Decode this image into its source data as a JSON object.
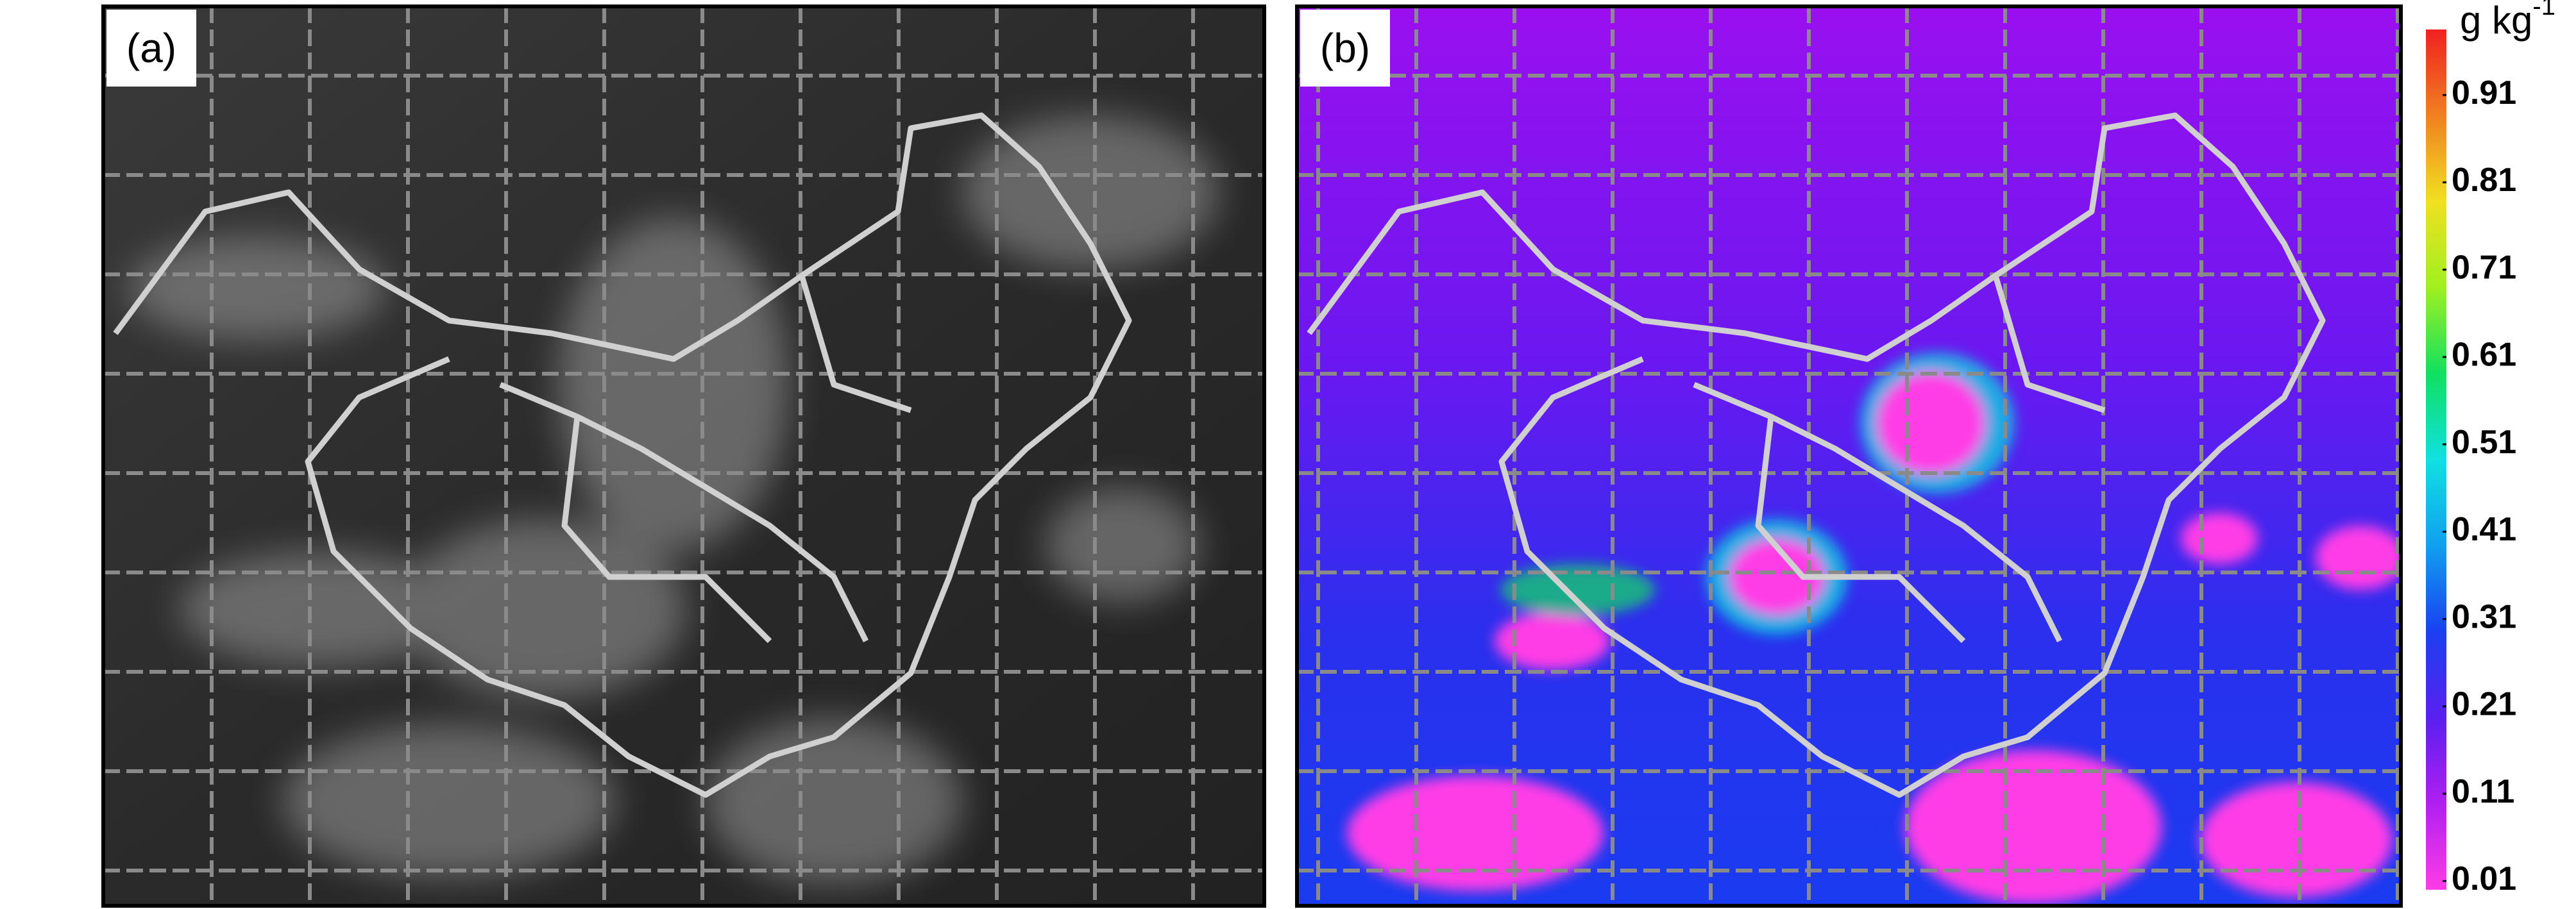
{
  "panels": [
    {
      "label": "(a)"
    },
    {
      "label": "(b)"
    }
  ],
  "colorbar": {
    "unit": {
      "base": "g kg",
      "superscript": "-1"
    },
    "lim": [
      0,
      0.985
    ],
    "ticks": [
      0.01,
      0.11,
      0.21,
      0.31,
      0.41,
      0.51,
      0.61,
      0.71,
      0.81,
      0.91
    ]
  }
}
